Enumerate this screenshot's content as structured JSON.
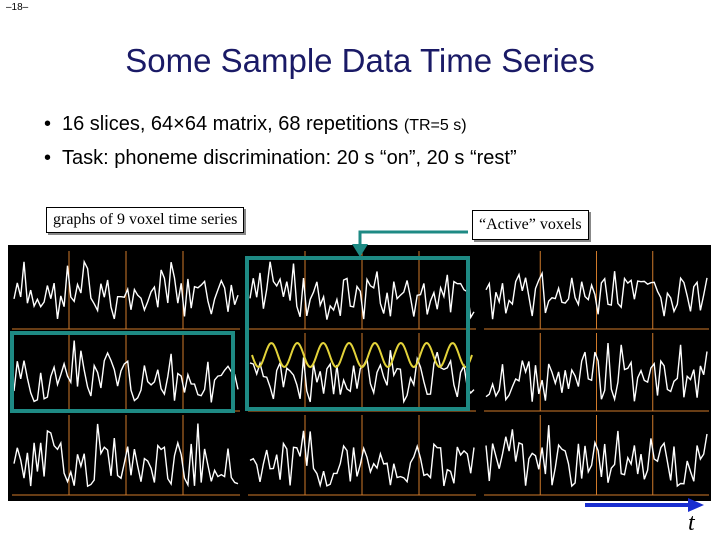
{
  "slide_number": "–18–",
  "title": "Some Sample Data Time Series",
  "bullets": [
    {
      "main": "16 slices, 64×64 matrix, 68 repetitions ",
      "small": "(TR=5 s)"
    },
    {
      "main": "Task: phoneme discrimination: 20 s “on”, 20 s “rest”",
      "small": ""
    }
  ],
  "callouts": {
    "graphs_label": "graphs of 9 voxel time series",
    "active_label": "“Active” voxels"
  },
  "axis_symbol": "t",
  "colors": {
    "title": "#1a1a66",
    "highlight_box": "#1e8a84",
    "arrow_time": "#1a2fd0",
    "signal": "#ffffff",
    "model_wave": "#e3d33a",
    "grid_line": "#d07a2a"
  }
}
